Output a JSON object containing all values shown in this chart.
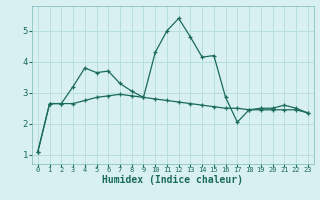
{
  "x": [
    0,
    1,
    2,
    3,
    4,
    5,
    6,
    7,
    8,
    9,
    10,
    11,
    12,
    13,
    14,
    15,
    16,
    17,
    18,
    19,
    20,
    21,
    22,
    23
  ],
  "line1": [
    1.1,
    2.65,
    2.65,
    3.2,
    3.8,
    3.65,
    3.7,
    3.3,
    3.05,
    2.85,
    4.3,
    5.0,
    5.4,
    4.8,
    4.15,
    4.2,
    2.85,
    2.05,
    2.45,
    2.5,
    2.5,
    2.6,
    2.5,
    2.35
  ],
  "line2": [
    1.1,
    2.65,
    2.65,
    2.65,
    2.75,
    2.85,
    2.9,
    2.95,
    2.9,
    2.85,
    2.8,
    2.75,
    2.7,
    2.65,
    2.6,
    2.55,
    2.5,
    2.5,
    2.45,
    2.45,
    2.45,
    2.45,
    2.45,
    2.35
  ],
  "line_color": "#1a6b5a",
  "bg_color": "#d8f0f0",
  "grid_color": "#b8dede",
  "xlabel": "Humidex (Indice chaleur)",
  "ylim": [
    0.7,
    5.8
  ],
  "xlim": [
    -0.5,
    23.5
  ],
  "yticks": [
    1,
    2,
    3,
    4,
    5
  ],
  "xticks": [
    0,
    1,
    2,
    3,
    4,
    5,
    6,
    7,
    8,
    9,
    10,
    11,
    12,
    13,
    14,
    15,
    16,
    17,
    18,
    19,
    20,
    21,
    22,
    23
  ],
  "tick_fontsize": 5.0,
  "xlabel_fontsize": 7.0,
  "ytick_fontsize": 6.5
}
